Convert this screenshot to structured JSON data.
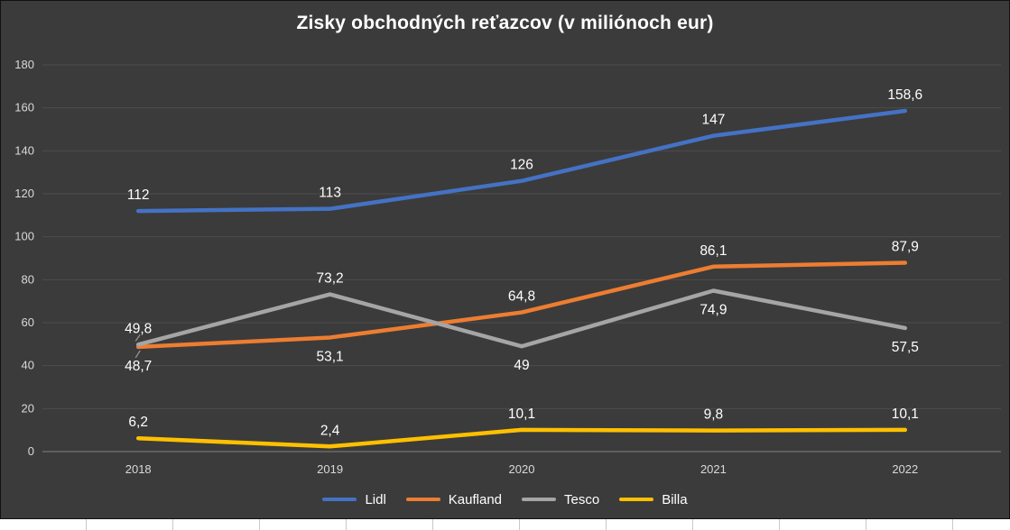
{
  "chart_data": {
    "type": "line",
    "title": "Zisky obchodných reťazcov (v miliónoch eur)",
    "categories": [
      "2018",
      "2019",
      "2020",
      "2021",
      "2022"
    ],
    "series": [
      {
        "name": "Lidl",
        "color": "#4472C4",
        "values": [
          112,
          113,
          126,
          147,
          158.6
        ],
        "labels": [
          "112",
          "113",
          "126",
          "147",
          "158,6"
        ],
        "label_positions": [
          "above",
          "above",
          "above",
          "above",
          "above"
        ]
      },
      {
        "name": "Kaufland",
        "color": "#ED7D31",
        "values": [
          48.7,
          53.1,
          64.8,
          86.1,
          87.9
        ],
        "labels": [
          "48,7",
          "53,1",
          "64,8",
          "86,1",
          "87,9"
        ],
        "label_positions": [
          "below",
          "below",
          "above",
          "above",
          "above"
        ]
      },
      {
        "name": "Tesco",
        "color": "#A5A5A5",
        "values": [
          49.8,
          73.2,
          49,
          74.9,
          57.5
        ],
        "labels": [
          "49,8",
          "73,2",
          "49",
          "74,9",
          "57,5"
        ],
        "label_positions": [
          "above",
          "above",
          "below",
          "below",
          "below"
        ]
      },
      {
        "name": "Billa",
        "color": "#FFC000",
        "values": [
          6.2,
          2.4,
          10.1,
          9.8,
          10.1
        ],
        "labels": [
          "6,2",
          "2,4",
          "10,1",
          "9,8",
          "10,1"
        ],
        "label_positions": [
          "above",
          "above",
          "above",
          "above",
          "above"
        ]
      }
    ],
    "ylim": [
      0,
      180
    ],
    "yticks": [
      0,
      20,
      40,
      60,
      80,
      100,
      120,
      140,
      160,
      180
    ],
    "grid": true,
    "legend_position": "bottom",
    "leader_marks": [
      {
        "series": "Tesco",
        "index": 0
      },
      {
        "series": "Kaufland",
        "index": 0
      }
    ],
    "colors": {
      "background": "#3B3B3B",
      "gridline": "#4D4D4D",
      "axis_line": "#808080",
      "axis_text": "#D9D9D9",
      "label_text": "#FFFFFF",
      "title_text": "#FFFFFF"
    }
  }
}
